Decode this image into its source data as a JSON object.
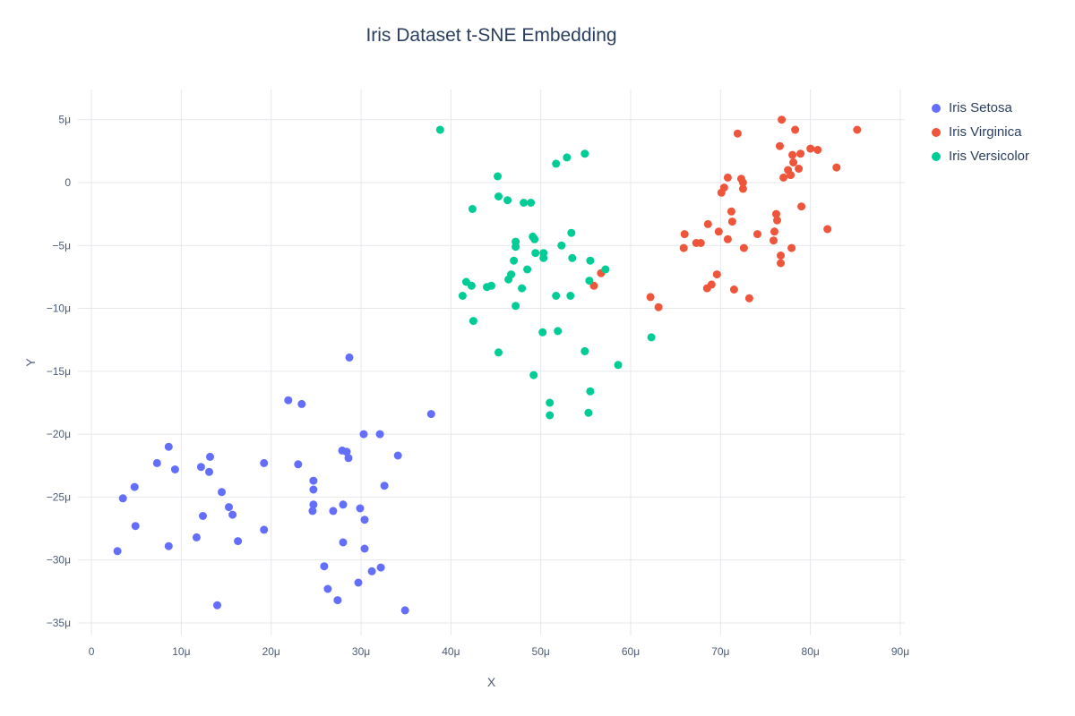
{
  "chart_data": {
    "type": "scatter",
    "title": "Iris Dataset t-SNE Embedding",
    "xlabel": "X",
    "ylabel": "Y",
    "grid": true,
    "legend_position": "top-right",
    "x_range": [
      -1.5,
      90.5
    ],
    "y_range": [
      -36.0,
      7.4
    ],
    "x_tick_values": [
      0,
      10,
      20,
      30,
      40,
      50,
      60,
      70,
      80,
      90
    ],
    "x_tick_labels": [
      "0",
      "10μ",
      "20μ",
      "30μ",
      "40μ",
      "50μ",
      "60μ",
      "70μ",
      "80μ",
      "90μ"
    ],
    "y_tick_values": [
      5,
      0,
      -5,
      -10,
      -15,
      -20,
      -25,
      -30,
      -35
    ],
    "y_tick_labels": [
      "5μ",
      "0",
      "−5μ",
      "−10μ",
      "−15μ",
      "−20μ",
      "−25μ",
      "−30μ",
      "−35μ"
    ],
    "colors": {
      "grid": "#e5e7eb",
      "title_text": "#2a3f5f",
      "tick_text": "#4c5c77",
      "setosa": "#636efa",
      "virginica": "#ef553b",
      "versicolor": "#00cc96"
    },
    "marker_diameter_px": 9,
    "series": [
      {
        "name": "Iris Setosa",
        "color": "#636efa",
        "points": [
          [
            21.9,
            -17.3
          ],
          [
            23.4,
            -17.6
          ],
          [
            28.7,
            -13.9
          ],
          [
            8.6,
            -21.0
          ],
          [
            7.3,
            -22.3
          ],
          [
            9.3,
            -22.8
          ],
          [
            13.2,
            -21.8
          ],
          [
            12.2,
            -22.6
          ],
          [
            13.1,
            -23.0
          ],
          [
            19.2,
            -22.3
          ],
          [
            23.0,
            -22.4
          ],
          [
            4.8,
            -24.2
          ],
          [
            3.5,
            -25.1
          ],
          [
            14.5,
            -24.6
          ],
          [
            15.3,
            -25.8
          ],
          [
            15.7,
            -26.4
          ],
          [
            12.4,
            -26.5
          ],
          [
            4.9,
            -27.3
          ],
          [
            11.7,
            -28.2
          ],
          [
            19.2,
            -27.6
          ],
          [
            16.3,
            -28.5
          ],
          [
            2.9,
            -29.3
          ],
          [
            8.6,
            -28.9
          ],
          [
            14.0,
            -33.6
          ],
          [
            37.8,
            -18.4
          ],
          [
            30.3,
            -20.0
          ],
          [
            32.1,
            -20.0
          ],
          [
            27.9,
            -21.3
          ],
          [
            28.4,
            -21.4
          ],
          [
            28.6,
            -21.9
          ],
          [
            34.1,
            -21.7
          ],
          [
            24.7,
            -23.7
          ],
          [
            24.7,
            -24.4
          ],
          [
            32.6,
            -24.1
          ],
          [
            24.7,
            -25.6
          ],
          [
            24.6,
            -26.1
          ],
          [
            28.0,
            -25.6
          ],
          [
            26.9,
            -26.1
          ],
          [
            29.9,
            -25.9
          ],
          [
            30.4,
            -26.8
          ],
          [
            28.0,
            -28.6
          ],
          [
            30.4,
            -29.1
          ],
          [
            25.9,
            -30.5
          ],
          [
            31.2,
            -30.9
          ],
          [
            32.2,
            -30.6
          ],
          [
            29.7,
            -31.8
          ],
          [
            26.3,
            -32.3
          ],
          [
            27.4,
            -33.2
          ],
          [
            34.9,
            -34.0
          ]
        ]
      },
      {
        "name": "Iris Virginica",
        "color": "#ef553b",
        "points": [
          [
            76.8,
            5.0
          ],
          [
            78.3,
            4.2
          ],
          [
            85.2,
            4.2
          ],
          [
            71.9,
            3.9
          ],
          [
            76.6,
            2.9
          ],
          [
            80.0,
            2.7
          ],
          [
            80.8,
            2.6
          ],
          [
            78.9,
            2.3
          ],
          [
            78.0,
            2.2
          ],
          [
            77.5,
            1.0
          ],
          [
            78.7,
            1.1
          ],
          [
            82.9,
            1.2
          ],
          [
            78.1,
            1.6
          ],
          [
            77.8,
            0.6
          ],
          [
            77.0,
            0.4
          ],
          [
            70.8,
            0.4
          ],
          [
            72.3,
            0.3
          ],
          [
            72.5,
            0.0
          ],
          [
            70.4,
            -0.4
          ],
          [
            72.5,
            -0.5
          ],
          [
            70.1,
            -0.8
          ],
          [
            79.0,
            -1.9
          ],
          [
            71.2,
            -2.3
          ],
          [
            76.2,
            -2.5
          ],
          [
            76.3,
            -3.0
          ],
          [
            71.3,
            -3.1
          ],
          [
            68.6,
            -3.3
          ],
          [
            81.9,
            -3.7
          ],
          [
            69.8,
            -3.9
          ],
          [
            76.0,
            -3.9
          ],
          [
            66.0,
            -4.1
          ],
          [
            74.1,
            -4.1
          ],
          [
            70.8,
            -4.5
          ],
          [
            75.9,
            -4.6
          ],
          [
            67.3,
            -4.8
          ],
          [
            67.8,
            -4.8
          ],
          [
            65.9,
            -5.2
          ],
          [
            72.6,
            -5.2
          ],
          [
            77.9,
            -5.2
          ],
          [
            76.7,
            -5.8
          ],
          [
            76.7,
            -6.4
          ],
          [
            69.6,
            -7.3
          ],
          [
            56.7,
            -7.2
          ],
          [
            69.0,
            -8.1
          ],
          [
            55.9,
            -8.2
          ],
          [
            68.5,
            -8.4
          ],
          [
            71.5,
            -8.5
          ],
          [
            73.2,
            -9.2
          ],
          [
            62.2,
            -9.1
          ],
          [
            63.1,
            -9.9
          ]
        ]
      },
      {
        "name": "Iris Versicolor",
        "color": "#00cc96",
        "points": [
          [
            38.8,
            4.2
          ],
          [
            54.9,
            2.3
          ],
          [
            52.9,
            2.0
          ],
          [
            51.7,
            1.5
          ],
          [
            45.2,
            0.5
          ],
          [
            45.3,
            -1.1
          ],
          [
            46.3,
            -1.4
          ],
          [
            48.1,
            -1.6
          ],
          [
            48.9,
            -1.6
          ],
          [
            42.4,
            -2.1
          ],
          [
            53.4,
            -4.0
          ],
          [
            49.1,
            -4.3
          ],
          [
            49.3,
            -4.5
          ],
          [
            47.2,
            -4.7
          ],
          [
            52.3,
            -5.0
          ],
          [
            47.2,
            -5.1
          ],
          [
            49.4,
            -5.6
          ],
          [
            50.3,
            -5.6
          ],
          [
            50.3,
            -6.0
          ],
          [
            53.5,
            -6.0
          ],
          [
            47.0,
            -6.2
          ],
          [
            55.5,
            -6.2
          ],
          [
            48.5,
            -6.9
          ],
          [
            57.2,
            -6.9
          ],
          [
            46.7,
            -7.3
          ],
          [
            46.4,
            -7.7
          ],
          [
            55.4,
            -7.8
          ],
          [
            41.7,
            -7.9
          ],
          [
            42.3,
            -8.2
          ],
          [
            44.5,
            -8.2
          ],
          [
            44.0,
            -8.3
          ],
          [
            47.9,
            -8.4
          ],
          [
            41.3,
            -9.0
          ],
          [
            51.7,
            -9.0
          ],
          [
            53.3,
            -9.0
          ],
          [
            47.2,
            -9.8
          ],
          [
            42.5,
            -11.0
          ],
          [
            50.2,
            -11.9
          ],
          [
            51.9,
            -11.8
          ],
          [
            62.3,
            -12.3
          ],
          [
            45.3,
            -13.5
          ],
          [
            54.9,
            -13.4
          ],
          [
            58.6,
            -14.5
          ],
          [
            49.2,
            -15.3
          ],
          [
            55.5,
            -16.6
          ],
          [
            51.0,
            -17.5
          ],
          [
            55.3,
            -18.3
          ],
          [
            51.0,
            -18.5
          ]
        ]
      }
    ]
  }
}
